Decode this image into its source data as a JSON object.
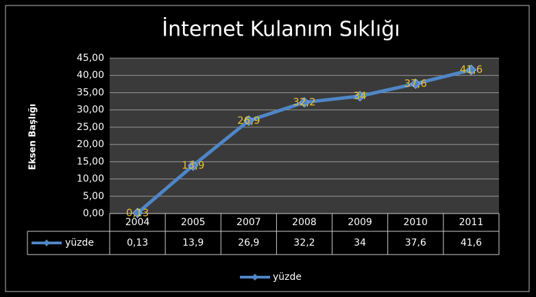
{
  "chart_data": {
    "type": "line",
    "title": "İnternet Kulanım Sıklığı",
    "ylabel": "Eksen Başlığı",
    "categories": [
      "2004",
      "2005",
      "2007",
      "2008",
      "2009",
      "2010",
      "2011"
    ],
    "series": [
      {
        "name": "yüzde",
        "color": "#4f86c6",
        "values": [
          0.13,
          13.9,
          26.9,
          32.2,
          34,
          37.6,
          41.6
        ],
        "value_labels": [
          "0,13",
          "13,9",
          "26,9",
          "32,2",
          "34",
          "37,6",
          "41,6"
        ]
      }
    ],
    "ylim": [
      0,
      45
    ],
    "yticks": [
      {
        "value": 0,
        "label": "0,00"
      },
      {
        "value": 5,
        "label": "5,00"
      },
      {
        "value": 10,
        "label": "10,00"
      },
      {
        "value": 15,
        "label": "15,00"
      },
      {
        "value": 20,
        "label": "20,00"
      },
      {
        "value": 25,
        "label": "25,00"
      },
      {
        "value": 30,
        "label": "30,00"
      },
      {
        "value": 35,
        "label": "35,00"
      },
      {
        "value": 40,
        "label": "40,00"
      },
      {
        "value": 45,
        "label": "45,00"
      }
    ],
    "grid": true,
    "legend": "bottom"
  }
}
